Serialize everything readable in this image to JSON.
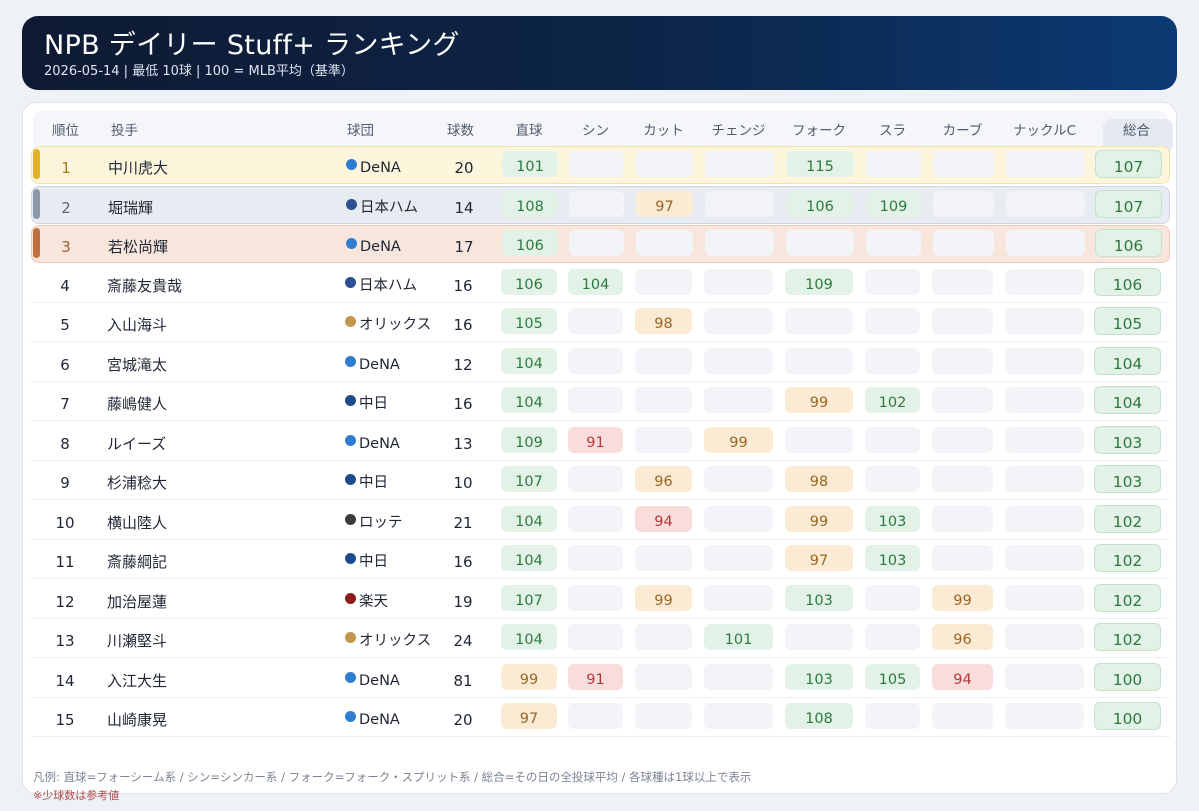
{
  "header": {
    "title": "NPB デイリー Stuff+ ランキング",
    "subtitle": "2026-05-14  |  最低 10球  |  100 = MLB平均（基準）"
  },
  "columns": {
    "rank": "順位",
    "pitcher": "投手",
    "team": "球団",
    "count": "球数",
    "pitches": [
      "直球",
      "シン",
      "カット",
      "チェンジ",
      "フォーク",
      "スラ",
      "カーブ",
      "ナックルC"
    ],
    "total": "総合"
  },
  "team_colors": {
    "DeNA": "#2f7dd1",
    "日本ハム": "#2c4f8f",
    "オリックス": "#c09650",
    "中日": "#1f4a8c",
    "ロッテ": "#3c3c3c",
    "楽天": "#8e1b1b"
  },
  "rows": [
    {
      "rank": "1",
      "pitcher": "中川虎大",
      "team": "DeNA",
      "count": "20",
      "pitches": [
        "101",
        "",
        "",
        "",
        "115",
        "",
        "",
        ""
      ],
      "total": "107"
    },
    {
      "rank": "2",
      "pitcher": "堀瑞輝",
      "team": "日本ハム",
      "count": "14",
      "pitches": [
        "108",
        "",
        "97",
        "",
        "106",
        "109",
        "",
        ""
      ],
      "total": "107"
    },
    {
      "rank": "3",
      "pitcher": "若松尚輝",
      "team": "DeNA",
      "count": "17",
      "pitches": [
        "106",
        "",
        "",
        "",
        "",
        "",
        "",
        ""
      ],
      "total": "106"
    },
    {
      "rank": "4",
      "pitcher": "斎藤友貴哉",
      "team": "日本ハム",
      "count": "16",
      "pitches": [
        "106",
        "104",
        "",
        "",
        "109",
        "",
        "",
        ""
      ],
      "total": "106"
    },
    {
      "rank": "5",
      "pitcher": "入山海斗",
      "team": "オリックス",
      "count": "16",
      "pitches": [
        "105",
        "",
        "98",
        "",
        "",
        "",
        "",
        ""
      ],
      "total": "105"
    },
    {
      "rank": "6",
      "pitcher": "宮城滝太",
      "team": "DeNA",
      "count": "12",
      "pitches": [
        "104",
        "",
        "",
        "",
        "",
        "",
        "",
        ""
      ],
      "total": "104"
    },
    {
      "rank": "7",
      "pitcher": "藤嶋健人",
      "team": "中日",
      "count": "16",
      "pitches": [
        "104",
        "",
        "",
        "",
        "99",
        "102",
        "",
        ""
      ],
      "total": "104"
    },
    {
      "rank": "8",
      "pitcher": "ルイーズ",
      "team": "DeNA",
      "count": "13",
      "pitches": [
        "109",
        "91",
        "",
        "99",
        "",
        "",
        "",
        ""
      ],
      "total": "103"
    },
    {
      "rank": "9",
      "pitcher": "杉浦稔大",
      "team": "中日",
      "count": "10",
      "pitches": [
        "107",
        "",
        "96",
        "",
        "98",
        "",
        "",
        ""
      ],
      "total": "103"
    },
    {
      "rank": "10",
      "pitcher": "横山陸人",
      "team": "ロッテ",
      "count": "21",
      "pitches": [
        "104",
        "",
        "94",
        "",
        "99",
        "103",
        "",
        ""
      ],
      "total": "102"
    },
    {
      "rank": "11",
      "pitcher": "斎藤綱記",
      "team": "中日",
      "count": "16",
      "pitches": [
        "104",
        "",
        "",
        "",
        "97",
        "103",
        "",
        ""
      ],
      "total": "102"
    },
    {
      "rank": "12",
      "pitcher": "加治屋蓮",
      "team": "楽天",
      "count": "19",
      "pitches": [
        "107",
        "",
        "99",
        "",
        "103",
        "",
        "99",
        ""
      ],
      "total": "102"
    },
    {
      "rank": "13",
      "pitcher": "川瀬堅斗",
      "team": "オリックス",
      "count": "24",
      "pitches": [
        "104",
        "",
        "",
        "101",
        "",
        "",
        "96",
        ""
      ],
      "total": "102"
    },
    {
      "rank": "14",
      "pitcher": "入江大生",
      "team": "DeNA",
      "count": "81",
      "pitches": [
        "99",
        "91",
        "",
        "",
        "103",
        "105",
        "94",
        ""
      ],
      "total": "100"
    },
    {
      "rank": "15",
      "pitcher": "山崎康晃",
      "team": "DeNA",
      "count": "20",
      "pitches": [
        "97",
        "",
        "",
        "",
        "108",
        "",
        "",
        ""
      ],
      "total": "100"
    }
  ],
  "legend": "凡例: 直球=フォーシーム系 / シン=シンカー系 / フォーク=フォーク・スプリット系 / 総合=その日の全投球平均 / 各球種は1球以上で表示",
  "note": "※少球数は参考値"
}
